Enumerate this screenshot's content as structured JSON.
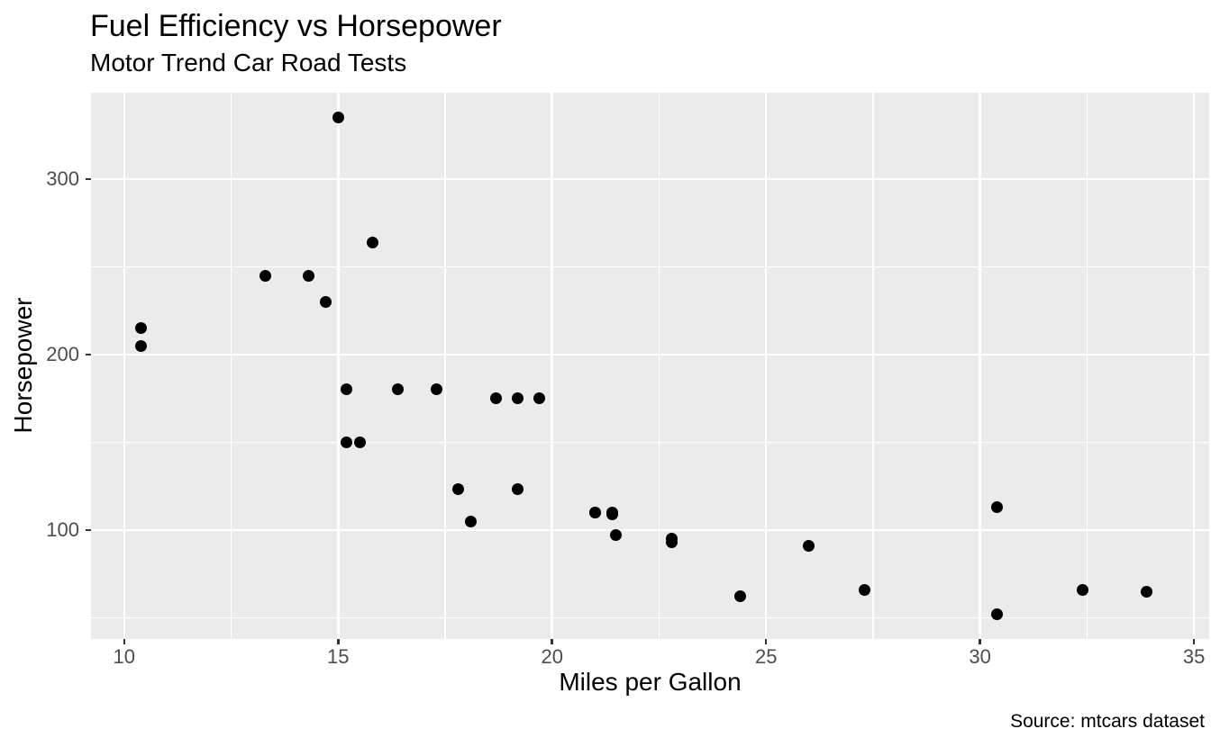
{
  "chart_data": {
    "type": "scatter",
    "title": "Fuel Efficiency vs Horsepower",
    "subtitle": "Motor Trend Car Road Tests",
    "xlabel": "Miles per Gallon",
    "ylabel": "Horsepower",
    "caption": "Source: mtcars dataset",
    "xlim": [
      9.225,
      35.355
    ],
    "ylim": [
      37.85,
      349.15
    ],
    "x_ticks": [
      10,
      15,
      20,
      25,
      30,
      35
    ],
    "y_ticks": [
      100,
      200,
      300
    ],
    "x_minor_ticks": [
      12.5,
      17.5,
      22.5,
      27.5,
      32.5
    ],
    "y_minor_ticks": [
      50,
      150,
      250
    ],
    "grid": true,
    "legend": "none",
    "panel_background_color": "#EBEBEB",
    "gridline_color": "#FFFFFF",
    "point_color": "#000000",
    "tick_label_color": "#4D4D4D",
    "tick_mark_color": "#333333",
    "x_field": "mpg",
    "y_field": "hp",
    "points": [
      [
        21.0,
        110
      ],
      [
        21.0,
        110
      ],
      [
        22.8,
        93
      ],
      [
        21.4,
        110
      ],
      [
        18.7,
        175
      ],
      [
        18.1,
        105
      ],
      [
        14.3,
        245
      ],
      [
        24.4,
        62
      ],
      [
        22.8,
        95
      ],
      [
        19.2,
        123
      ],
      [
        17.8,
        123
      ],
      [
        16.4,
        180
      ],
      [
        17.3,
        180
      ],
      [
        15.2,
        180
      ],
      [
        10.4,
        205
      ],
      [
        10.4,
        215
      ],
      [
        14.7,
        230
      ],
      [
        32.4,
        66
      ],
      [
        30.4,
        52
      ],
      [
        33.9,
        65
      ],
      [
        21.5,
        97
      ],
      [
        15.5,
        150
      ],
      [
        15.2,
        150
      ],
      [
        13.3,
        245
      ],
      [
        19.2,
        175
      ],
      [
        27.3,
        66
      ],
      [
        26.0,
        91
      ],
      [
        30.4,
        113
      ],
      [
        15.8,
        264
      ],
      [
        19.7,
        175
      ],
      [
        15.0,
        335
      ],
      [
        21.4,
        109
      ]
    ]
  }
}
